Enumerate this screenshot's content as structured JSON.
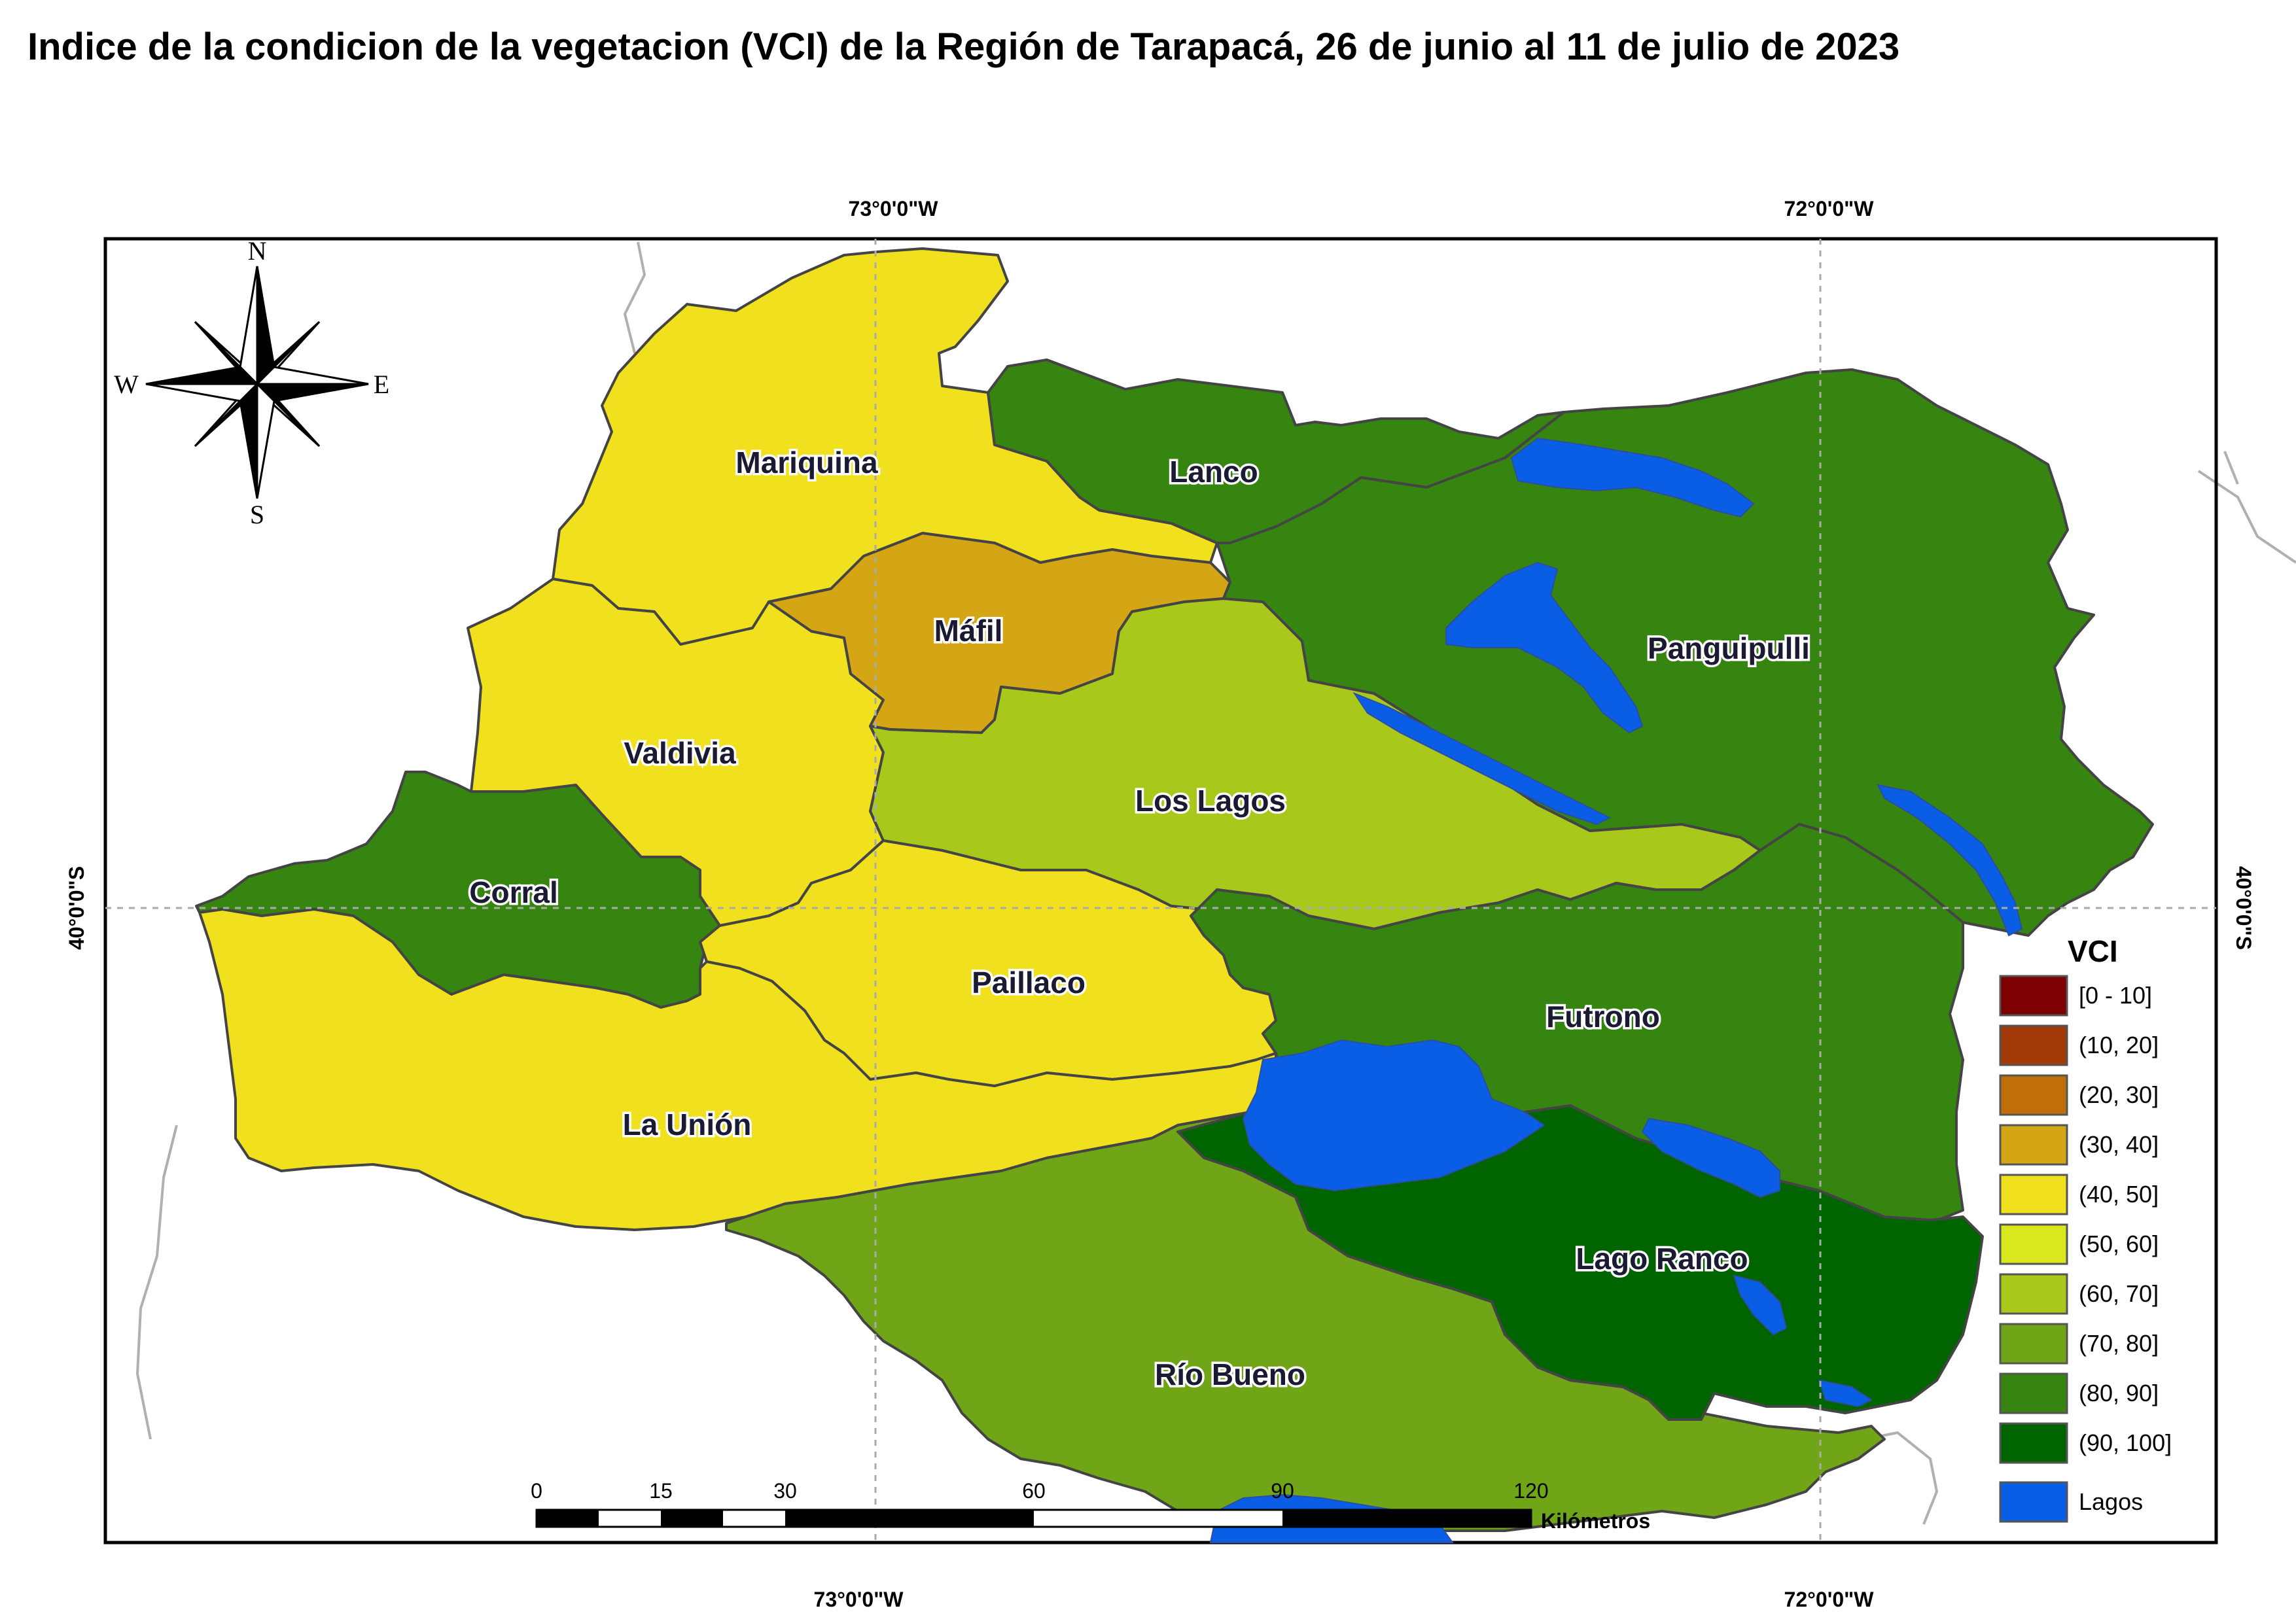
{
  "title": "Indice de la condicion de la vegetacion (VCI) de la Región de Tarapacá, 26 de junio al 11 de julio de 2023",
  "coordinates": {
    "lon_left": "73°0'0\"W",
    "lon_right": "72°0'0\"W",
    "lat": "40°0'0\"S"
  },
  "compass": {
    "n": "N",
    "s": "S",
    "e": "E",
    "w": "W"
  },
  "municipalities": [
    {
      "name": "Mariquina",
      "vci_class": "(40, 50]"
    },
    {
      "name": "Lanco",
      "vci_class": "(80, 90]"
    },
    {
      "name": "Máfil",
      "vci_class": "(30, 40]"
    },
    {
      "name": "Panguipulli",
      "vci_class": "(80, 90]"
    },
    {
      "name": "Valdivia",
      "vci_class": "(40, 50]"
    },
    {
      "name": "Los Lagos",
      "vci_class": "(60, 70]"
    },
    {
      "name": "Corral",
      "vci_class": "(80, 90]"
    },
    {
      "name": "Paillaco",
      "vci_class": "(40, 50]"
    },
    {
      "name": "Futrono",
      "vci_class": "(80, 90]"
    },
    {
      "name": "La Unión",
      "vci_class": "(40, 50]"
    },
    {
      "name": "Lago Ranco",
      "vci_class": "(90, 100]"
    },
    {
      "name": "Río Bueno",
      "vci_class": "(70, 80]"
    }
  ],
  "scale_bar": {
    "labels": [
      "0",
      "15",
      "30",
      "60",
      "90",
      "120"
    ],
    "unit": "Kilómetros"
  },
  "legend": {
    "title": "VCI",
    "items": [
      {
        "label": "[0 - 10]",
        "color": "#7f0000"
      },
      {
        "label": "(10, 20]",
        "color": "#a33a08"
      },
      {
        "label": "(20, 30]",
        "color": "#bf6e0a"
      },
      {
        "label": "(30, 40]",
        "color": "#d4a514"
      },
      {
        "label": "(40, 50]",
        "color": "#f0e01e"
      },
      {
        "label": "(50, 60]",
        "color": "#d9e81e"
      },
      {
        "label": "(60, 70]",
        "color": "#a8c81c"
      },
      {
        "label": "(70, 80]",
        "color": "#6fa516"
      },
      {
        "label": "(80, 90]",
        "color": "#368510"
      },
      {
        "label": "(90, 100]",
        "color": "#006400"
      },
      {
        "label": "Lagos",
        "color": "#0a5ee6"
      }
    ]
  }
}
